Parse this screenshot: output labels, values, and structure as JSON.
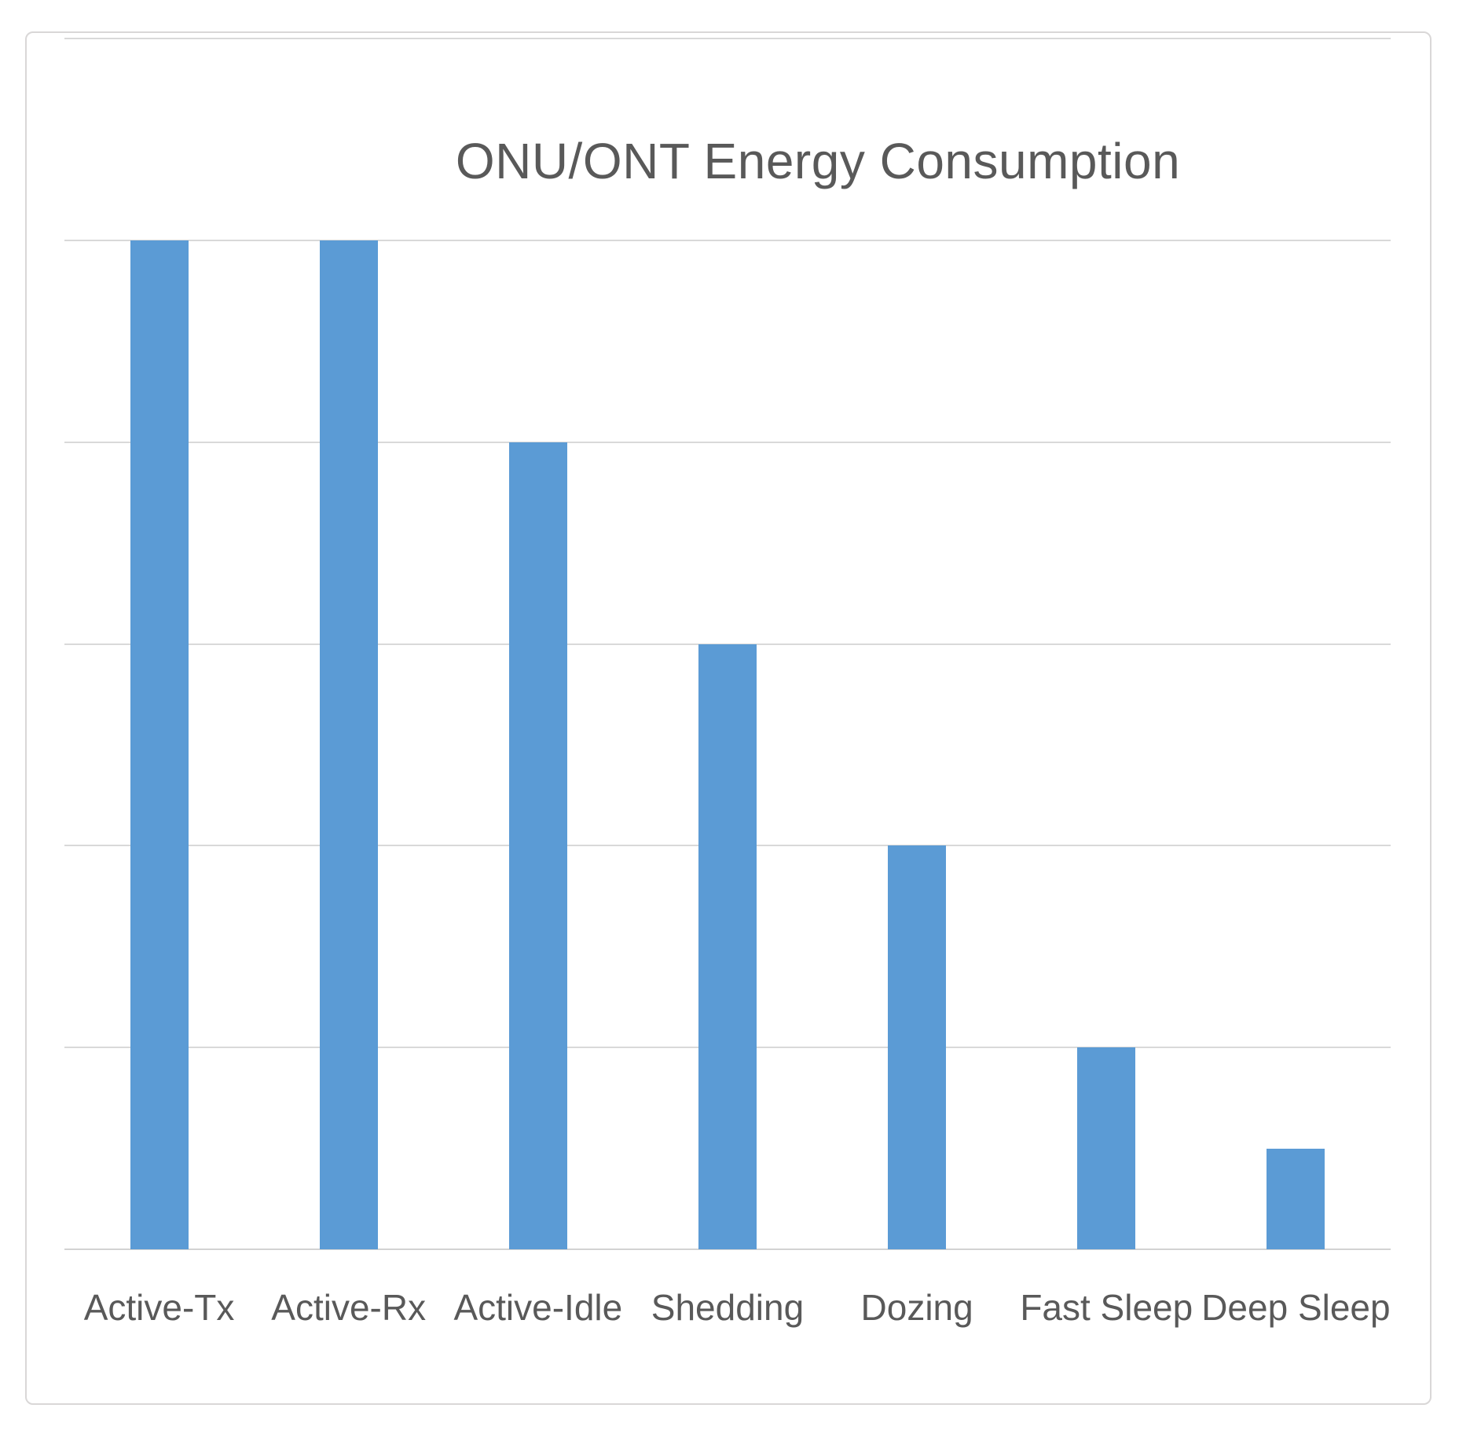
{
  "chart": {
    "title": "ONU/ONT Energy Consumption"
  },
  "chart_data": {
    "type": "bar",
    "title": "ONU/ONT Energy Consumption",
    "categories": [
      "Active-Tx",
      "Active-Rx",
      "Active-Idle",
      "Shedding",
      "Dozing",
      "Fast Sleep",
      "Deep Sleep"
    ],
    "values": [
      5,
      5,
      4,
      3,
      2,
      1,
      0.5
    ],
    "value_units": "relative (gridline units; y-axis has no tick labels)",
    "xlabel": "",
    "ylabel": "",
    "ylim": [
      0,
      6
    ],
    "gridline_count": 7,
    "grid": true,
    "legend": "none",
    "colors": {
      "bar": "#5b9bd5",
      "gridline": "#d9d9d9",
      "axis_line": "#d3d3d3",
      "text": "#595959",
      "frame_border": "#d9d7d7",
      "background": "#ffffff"
    }
  }
}
